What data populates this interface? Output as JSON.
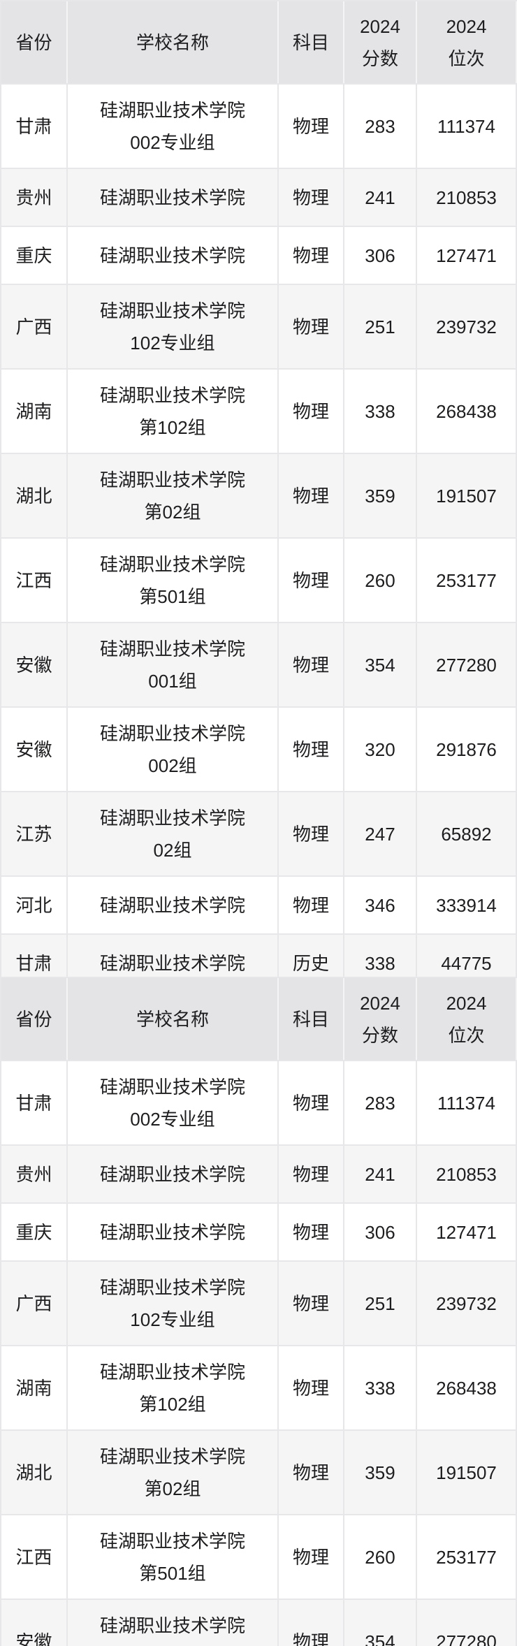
{
  "table": {
    "columns": [
      {
        "key": "province",
        "label": "省份"
      },
      {
        "key": "school",
        "label": "学校名称"
      },
      {
        "key": "subject",
        "label": "科目"
      },
      {
        "key": "score",
        "label": "2024\n分数"
      },
      {
        "key": "rank",
        "label": "2024\n位次"
      }
    ],
    "rows": [
      {
        "province": "甘肃",
        "school": "硅湖职业技术学院\n002专业组",
        "subject": "物理",
        "score": "283",
        "rank": "111374"
      },
      {
        "province": "贵州",
        "school": "硅湖职业技术学院",
        "subject": "物理",
        "score": "241",
        "rank": "210853"
      },
      {
        "province": "重庆",
        "school": "硅湖职业技术学院",
        "subject": "物理",
        "score": "306",
        "rank": "127471"
      },
      {
        "province": "广西",
        "school": "硅湖职业技术学院\n102专业组",
        "subject": "物理",
        "score": "251",
        "rank": "239732"
      },
      {
        "province": "湖南",
        "school": "硅湖职业技术学院\n第102组",
        "subject": "物理",
        "score": "338",
        "rank": "268438"
      },
      {
        "province": "湖北",
        "school": "硅湖职业技术学院\n第02组",
        "subject": "物理",
        "score": "359",
        "rank": "191507"
      },
      {
        "province": "江西",
        "school": "硅湖职业技术学院\n第501组",
        "subject": "物理",
        "score": "260",
        "rank": "253177"
      },
      {
        "province": "安徽",
        "school": "硅湖职业技术学院\n001组",
        "subject": "物理",
        "score": "354",
        "rank": "277280"
      },
      {
        "province": "安徽",
        "school": "硅湖职业技术学院\n002组",
        "subject": "物理",
        "score": "320",
        "rank": "291876"
      },
      {
        "province": "江苏",
        "school": "硅湖职业技术学院\n02组",
        "subject": "物理",
        "score": "247",
        "rank": "65892"
      },
      {
        "province": "河北",
        "school": "硅湖职业技术学院",
        "subject": "物理",
        "score": "346",
        "rank": "333914"
      },
      {
        "province": "甘肃",
        "school": "硅湖职业技术学院",
        "subject": "历史",
        "score": "338",
        "rank": "44775"
      }
    ],
    "sections": [
      {
        "name": "table-view-1",
        "row_count": 12
      },
      {
        "name": "table-view-2",
        "row_count": 8
      }
    ]
  },
  "colors": {
    "header_bg": "#e4e4e6",
    "row_bg": "#ffffff",
    "row_alt_bg": "#f5f5f6",
    "border": "#e7e7e9",
    "text": "#1d1d1f"
  }
}
